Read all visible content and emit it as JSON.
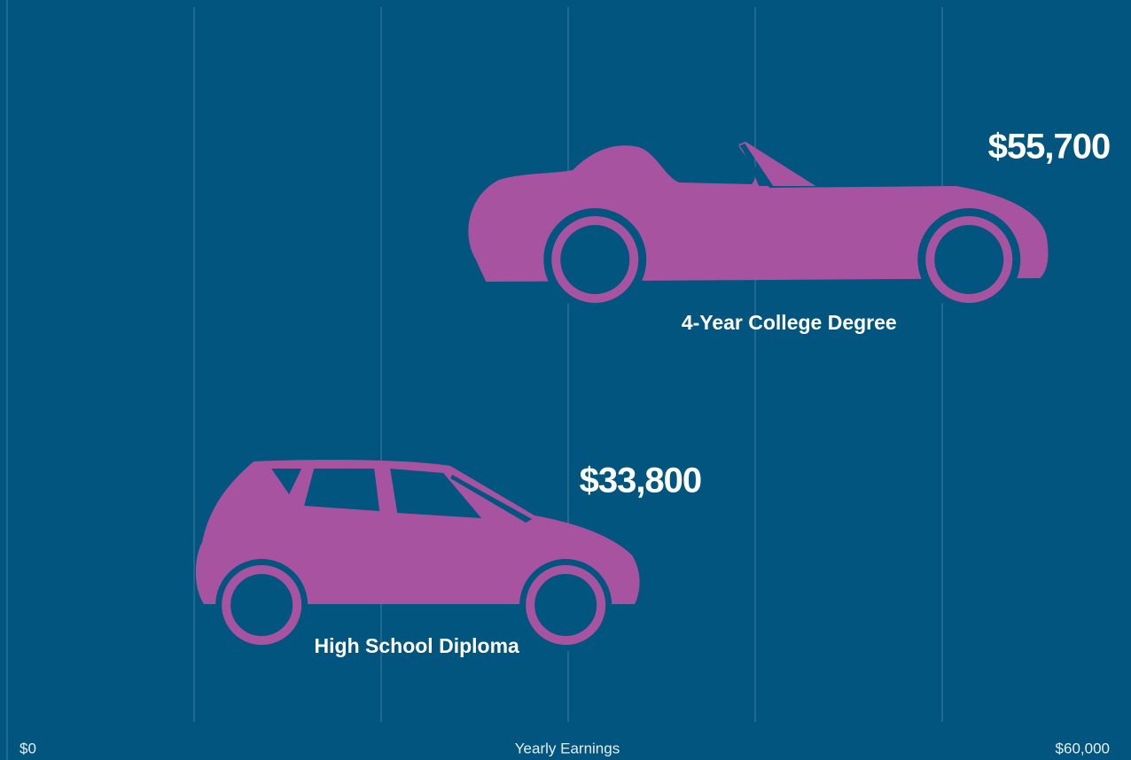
{
  "chart_data": {
    "type": "pictorial-bar",
    "categories": [
      "4-Year College Degree",
      "High School Diploma"
    ],
    "values": [
      55700,
      33800
    ],
    "value_labels": [
      "$55,700",
      "$33,800"
    ],
    "color": "#a853a0",
    "background": "#02557f",
    "xlabel": "Yearly Earnings",
    "xlim": [
      0,
      60000
    ],
    "xticks": [
      {
        "value": 0,
        "label": "$0"
      },
      {
        "value": 60000,
        "label": "$60,000"
      }
    ],
    "xgrid": [
      10000,
      20000,
      30000,
      40000,
      50000
    ],
    "grid": true
  }
}
